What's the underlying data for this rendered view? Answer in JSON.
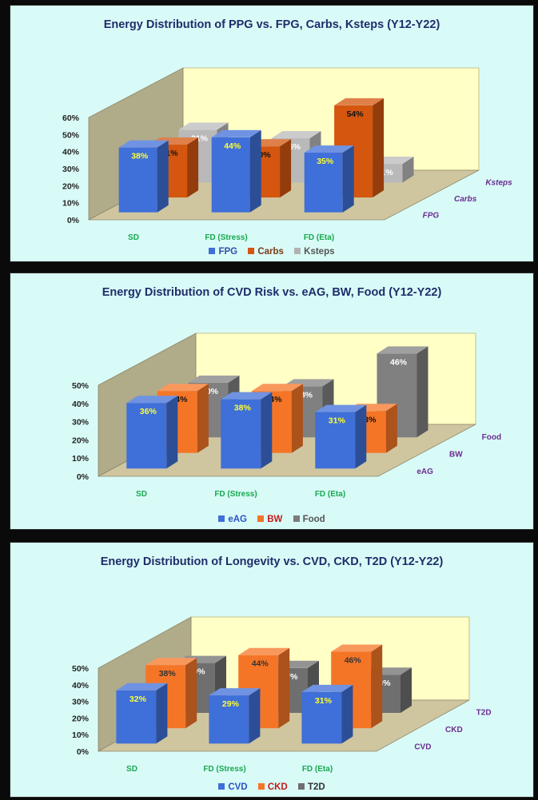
{
  "chart_data": [
    {
      "type": "bar",
      "title": "Energy Distribution of PPG vs. FPG, Carbs, Ksteps  (Y12-Y22)",
      "categories": [
        "SD",
        "FD (Stress)",
        "FD (Eta)"
      ],
      "series": [
        {
          "name": "FPG",
          "values": [
            38,
            44,
            35
          ]
        },
        {
          "name": "Carbs",
          "values": [
            31,
            30,
            54
          ]
        },
        {
          "name": "Ksteps",
          "values": [
            31,
            26,
            11
          ]
        }
      ],
      "data_labels": [
        [
          "38%",
          "44%",
          "35%"
        ],
        [
          "31%",
          "30%",
          "54%"
        ],
        [
          "31%",
          "26%",
          "11%"
        ]
      ],
      "y_ticks": [
        "0%",
        "10%",
        "20%",
        "30%",
        "40%",
        "50%",
        "60%"
      ],
      "ylim": [
        0,
        60
      ],
      "depth_labels": [
        "FPG",
        "Carbs",
        "Ksteps"
      ],
      "legend": [
        "FPG",
        "Carbs",
        "Ksteps"
      ],
      "colors": [
        "#3f6fd8",
        "#d4560f",
        "#b2b2b2"
      ],
      "front_colors": [
        "#3f6fd8",
        "#d4560f",
        "#b9b9b9"
      ],
      "label_colors": [
        "#ffff33",
        "#111111",
        "#ffffff"
      ],
      "legend_text_colors": [
        "#2f4fa8",
        "#7a3a18",
        "#555555"
      ],
      "depth_label_color": "#6b2c91",
      "category_label_color": "#17a84f",
      "legend_position": "bottom"
    },
    {
      "type": "bar",
      "title": "Energy Distribution of CVD Risk vs. eAG, BW, Food  (Y12-Y22)",
      "categories": [
        "SD",
        "FD (Stress)",
        "FD (Eta)"
      ],
      "series": [
        {
          "name": "eAG",
          "values": [
            36,
            38,
            31
          ]
        },
        {
          "name": "BW",
          "values": [
            34,
            34,
            23
          ]
        },
        {
          "name": "Food",
          "values": [
            30,
            28,
            46
          ]
        }
      ],
      "data_labels": [
        [
          "36%",
          "38%",
          "31%"
        ],
        [
          "34%",
          "34%",
          "23%"
        ],
        [
          "30%",
          "28%",
          "46%"
        ]
      ],
      "y_ticks": [
        "0%",
        "10%",
        "20%",
        "30%",
        "40%",
        "50%"
      ],
      "ylim": [
        0,
        50
      ],
      "depth_labels": [
        "eAG",
        "BW",
        "Food"
      ],
      "legend": [
        "eAG",
        "BW",
        "Food"
      ],
      "colors": [
        "#3f6fd8",
        "#f57527",
        "#7b7b7b"
      ],
      "front_colors": [
        "#3f6fd8",
        "#f57527",
        "#808080"
      ],
      "label_colors": [
        "#ffff33",
        "#111111",
        "#ffffff"
      ],
      "legend_text_colors": [
        "#2a52c9",
        "#c21c1c",
        "#555555"
      ],
      "depth_label_color": "#6b2c91",
      "category_label_color": "#17a84f",
      "legend_position": "bottom"
    },
    {
      "type": "bar",
      "title": "Energy Distribution of Longevity vs. CVD, CKD, T2D  (Y12-Y22)",
      "categories": [
        "SD",
        "FD (Stress)",
        "FD (Eta)"
      ],
      "series": [
        {
          "name": "CVD",
          "values": [
            32,
            29,
            31
          ]
        },
        {
          "name": "CKD",
          "values": [
            38,
            44,
            46
          ]
        },
        {
          "name": "T2D",
          "values": [
            30,
            27,
            23
          ]
        }
      ],
      "data_labels": [
        [
          "32%",
          "29%",
          "31%"
        ],
        [
          "38%",
          "44%",
          "46%"
        ],
        [
          "30%",
          "27%",
          "23%"
        ]
      ],
      "y_ticks": [
        "0%",
        "10%",
        "20%",
        "30%",
        "40%",
        "50%"
      ],
      "ylim": [
        0,
        50
      ],
      "depth_labels": [
        "CVD",
        "CKD",
        "T2D"
      ],
      "legend": [
        "CVD",
        "CKD",
        "T2D"
      ],
      "colors": [
        "#3f6fd8",
        "#f57527",
        "#6f6f6f"
      ],
      "front_colors": [
        "#3f6fd8",
        "#f57527",
        "#6f6f6f"
      ],
      "label_colors": [
        "#ffff33",
        "#333333",
        "#ffffff"
      ],
      "legend_text_colors": [
        "#2a52c9",
        "#c21c1c",
        "#333333"
      ],
      "depth_label_color": "#6b2c91",
      "category_label_color": "#17a84f",
      "legend_position": "bottom"
    }
  ]
}
